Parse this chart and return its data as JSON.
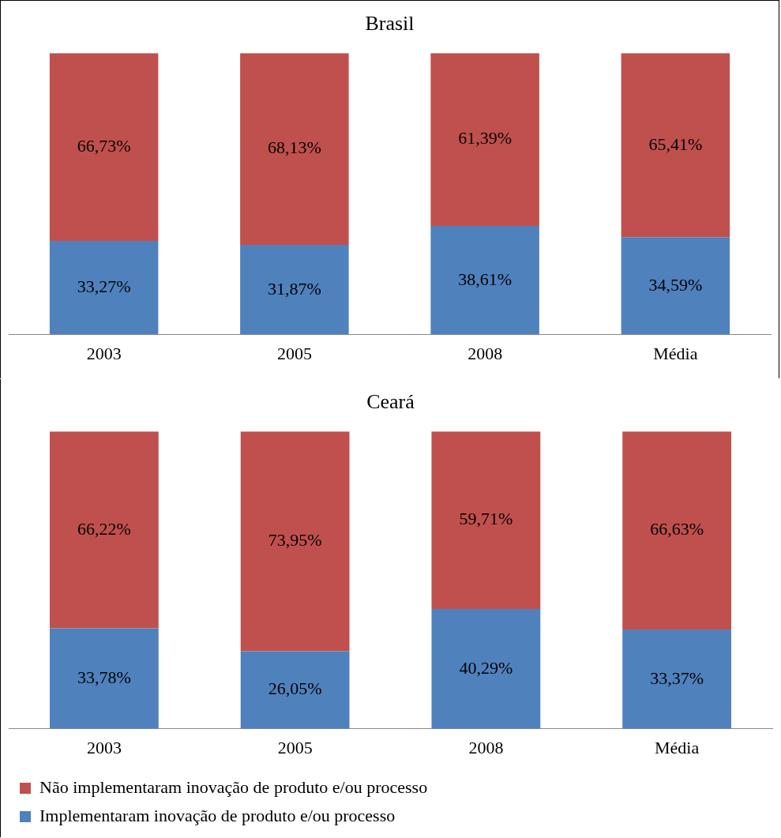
{
  "chart_data": [
    {
      "type": "bar",
      "title": "Brasil",
      "stacked": true,
      "legend": false,
      "categories": [
        "2003",
        "2005",
        "2008",
        "Média"
      ],
      "series": [
        {
          "color": "#4f81bd",
          "values": [
            33.27,
            31.87,
            38.61,
            34.59
          ],
          "value_labels": [
            "33,27%",
            "31,87%",
            "38,61%",
            "34,59%"
          ]
        },
        {
          "color": "#c0504d",
          "values": [
            66.73,
            68.13,
            61.39,
            65.41
          ],
          "value_labels": [
            "66,73%",
            "68,13%",
            "61,39%",
            "65,41%"
          ]
        }
      ]
    },
    {
      "type": "bar",
      "title": "Ceará",
      "stacked": true,
      "legend": "bottom",
      "categories": [
        "2003",
        "2005",
        "2008",
        "Média"
      ],
      "series": [
        {
          "name": "Implementaram inovação de produto e/ou processo",
          "color": "#4f81bd",
          "values": [
            33.78,
            26.05,
            40.29,
            33.37
          ],
          "value_labels": [
            "33,78%",
            "26,05%",
            "40,29%",
            "33,37%"
          ]
        },
        {
          "name": "Não implementaram inovação de produto e/ou processo",
          "color": "#c0504d",
          "values": [
            66.22,
            73.95,
            59.71,
            66.63
          ],
          "value_labels": [
            "66,22%",
            "73,95%",
            "59,71%",
            "66,63%"
          ]
        }
      ]
    }
  ]
}
